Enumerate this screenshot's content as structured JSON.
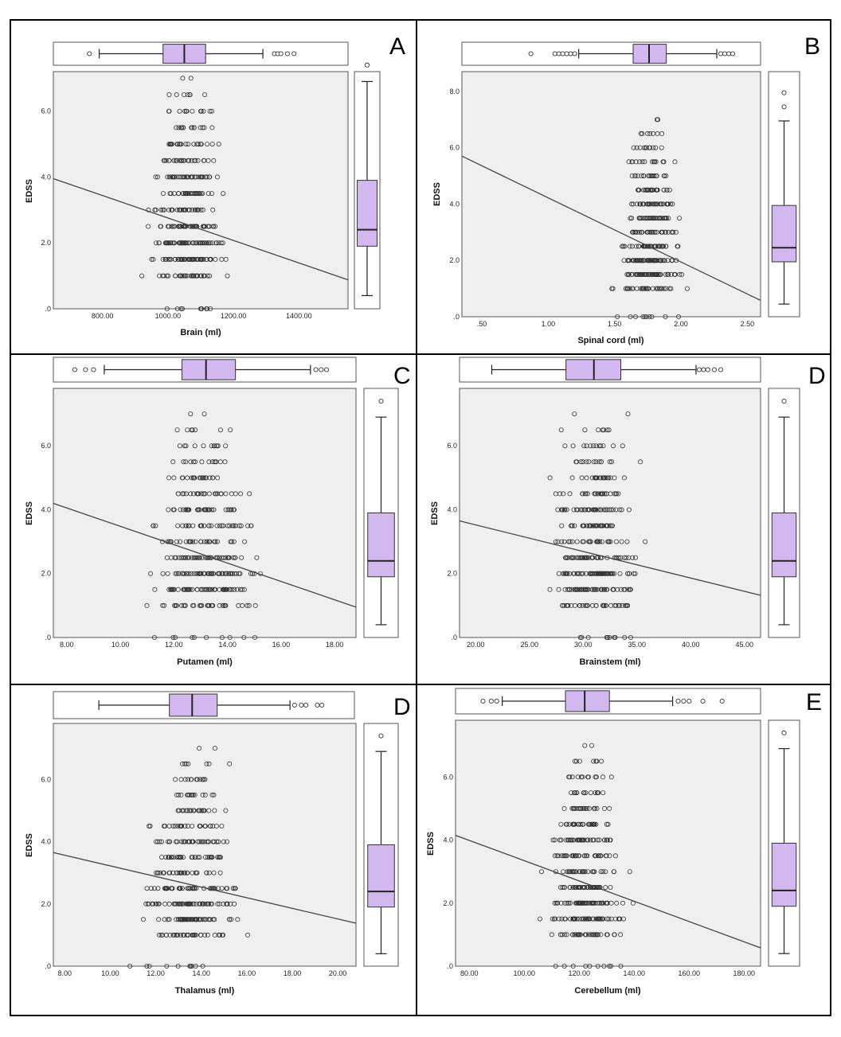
{
  "figure": {
    "ylabel": "EDSS",
    "y_ticks": [
      ".0",
      "2.0",
      "4.0",
      "6.0"
    ],
    "y_ticks_B": [
      ".0",
      "2.0",
      "4.0",
      "6.0",
      "8.0"
    ]
  },
  "chart_data": [
    {
      "id": "brain",
      "panel_letter": "A",
      "type": "scatter",
      "title": "",
      "xlabel": "Brain (ml)",
      "ylabel": "EDSS",
      "xlim": [
        650,
        1550
      ],
      "ylim": [
        0,
        7.2
      ],
      "x_ticks": [
        800,
        1000,
        1200,
        1400
      ],
      "x_tick_labels": [
        "800.00",
        "1000.00",
        "1200.00",
        "1400.00"
      ],
      "x_center": 1060,
      "x_spread": 95,
      "fit_line": {
        "x": [
          650,
          1550
        ],
        "y": [
          3.95,
          0.88
        ]
      },
      "x_boxplot": {
        "whisker_low": 790,
        "q1": 985,
        "median": 1050,
        "q3": 1115,
        "whisker_high": 1290,
        "outliers": [
          760,
          1325,
          1335,
          1345,
          1365,
          1385
        ]
      },
      "y_boxplot": {
        "whisker_low": 0.4,
        "q1": 1.9,
        "median": 2.4,
        "q3": 3.9,
        "whisker_high": 6.9,
        "outliers": [
          7.4
        ]
      }
    },
    {
      "id": "spinal",
      "panel_letter": "B",
      "type": "scatter",
      "title": "",
      "xlabel": "Spinal cord (ml)",
      "ylabel": "EDSS",
      "xlim": [
        0.35,
        2.6
      ],
      "ylim": [
        0,
        8.7
      ],
      "x_ticks": [
        0.5,
        1.0,
        1.5,
        2.0,
        2.5
      ],
      "x_tick_labels": [
        ".50",
        "1.00",
        "1.50",
        "2.00",
        "2.50"
      ],
      "x_center": 1.76,
      "x_spread": 0.2,
      "fit_line": {
        "x": [
          0.35,
          2.6
        ],
        "y": [
          5.7,
          0.58
        ]
      },
      "x_boxplot": {
        "whisker_low": 1.23,
        "q1": 1.64,
        "median": 1.76,
        "q3": 1.89,
        "whisker_high": 2.27,
        "outliers": [
          0.87,
          1.05,
          1.08,
          1.11,
          1.14,
          1.17,
          1.2,
          2.3,
          2.33,
          2.36,
          2.39
        ]
      },
      "y_boxplot": {
        "whisker_low": 0.45,
        "q1": 1.95,
        "median": 2.45,
        "q3": 3.95,
        "whisker_high": 6.95,
        "outliers": [
          7.45,
          7.95
        ]
      }
    },
    {
      "id": "putamen",
      "panel_letter": "C",
      "type": "scatter",
      "title": "",
      "xlabel": "Putamen (ml)",
      "ylabel": "EDSS",
      "xlim": [
        7.5,
        18.8
      ],
      "ylim": [
        0,
        7.8
      ],
      "x_ticks": [
        8,
        10,
        12,
        14,
        16,
        18
      ],
      "x_tick_labels": [
        "8.00",
        "10.00",
        "12.00",
        "14.00",
        "16.00",
        "18.00"
      ],
      "x_center": 13.2,
      "x_spread": 1.7,
      "fit_line": {
        "x": [
          7.5,
          18.8
        ],
        "y": [
          4.2,
          0.95
        ]
      },
      "x_boxplot": {
        "whisker_low": 9.4,
        "q1": 12.3,
        "median": 13.2,
        "q3": 14.3,
        "whisker_high": 17.1,
        "outliers": [
          8.3,
          8.7,
          9.0,
          17.3,
          17.5,
          17.7
        ]
      },
      "y_boxplot": {
        "whisker_low": 0.4,
        "q1": 1.9,
        "median": 2.4,
        "q3": 3.9,
        "whisker_high": 6.9,
        "outliers": [
          7.4
        ]
      }
    },
    {
      "id": "brainstem",
      "panel_letter": "D",
      "type": "scatter",
      "title": "",
      "xlabel": "Brainstem (ml)",
      "ylabel": "EDSS",
      "xlim": [
        18.5,
        46.5
      ],
      "ylim": [
        0,
        7.8
      ],
      "x_ticks": [
        20,
        25,
        30,
        35,
        40,
        45
      ],
      "x_tick_labels": [
        "20.00",
        "25.00",
        "30.00",
        "35.00",
        "40.00",
        "45.00"
      ],
      "x_center": 31.0,
      "x_spread": 3.8,
      "fit_line": {
        "x": [
          18.5,
          46.5
        ],
        "y": [
          3.65,
          1.32
        ]
      },
      "x_boxplot": {
        "whisker_low": 21.5,
        "q1": 28.4,
        "median": 31.0,
        "q3": 33.5,
        "whisker_high": 40.5,
        "outliers": [
          40.8,
          41.2,
          41.6,
          42.2,
          42.8
        ]
      },
      "y_boxplot": {
        "whisker_low": 0.4,
        "q1": 1.9,
        "median": 2.4,
        "q3": 3.9,
        "whisker_high": 6.9,
        "outliers": [
          7.4
        ]
      }
    },
    {
      "id": "thalamus",
      "panel_letter": "D",
      "type": "scatter",
      "title": "",
      "xlabel": "Thalamus (ml)",
      "ylabel": "EDSS",
      "xlim": [
        7.5,
        20.8
      ],
      "ylim": [
        0,
        7.8
      ],
      "x_ticks": [
        8,
        10,
        12,
        14,
        16,
        18,
        20
      ],
      "x_tick_labels": [
        "8.00",
        "10.00",
        "12.00",
        "14.00",
        "16.00",
        "18.00",
        "20.00"
      ],
      "x_center": 13.6,
      "x_spread": 1.8,
      "fit_line": {
        "x": [
          7.5,
          20.8
        ],
        "y": [
          3.65,
          1.38
        ]
      },
      "x_boxplot": {
        "whisker_low": 9.5,
        "q1": 12.6,
        "median": 13.6,
        "q3": 14.7,
        "whisker_high": 17.9,
        "outliers": [
          18.1,
          18.4,
          18.6,
          19.1,
          19.3
        ]
      },
      "y_boxplot": {
        "whisker_low": 0.4,
        "q1": 1.9,
        "median": 2.4,
        "q3": 3.9,
        "whisker_high": 6.9,
        "outliers": [
          7.4
        ]
      }
    },
    {
      "id": "cerebellum",
      "panel_letter": "E",
      "type": "scatter",
      "title": "",
      "xlabel": "Cerebellum (ml)",
      "ylabel": "EDSS",
      "xlim": [
        75,
        186
      ],
      "ylim": [
        0,
        7.8
      ],
      "x_ticks": [
        80,
        100,
        120,
        140,
        160,
        180
      ],
      "x_tick_labels": [
        "80.00",
        "100.00",
        "120.00",
        "140.00",
        "160.00",
        "180.00"
      ],
      "x_center": 122,
      "x_spread": 12,
      "fit_line": {
        "x": [
          75,
          186
        ],
        "y": [
          4.15,
          0.58
        ]
      },
      "x_boxplot": {
        "whisker_low": 92,
        "q1": 115,
        "median": 122,
        "q3": 131,
        "whisker_high": 154,
        "outliers": [
          85,
          88,
          90,
          156,
          158,
          160,
          165,
          172
        ]
      },
      "y_boxplot": {
        "whisker_low": 0.4,
        "q1": 1.9,
        "median": 2.4,
        "q3": 3.9,
        "whisker_high": 6.9,
        "outliers": [
          7.4
        ]
      }
    }
  ]
}
